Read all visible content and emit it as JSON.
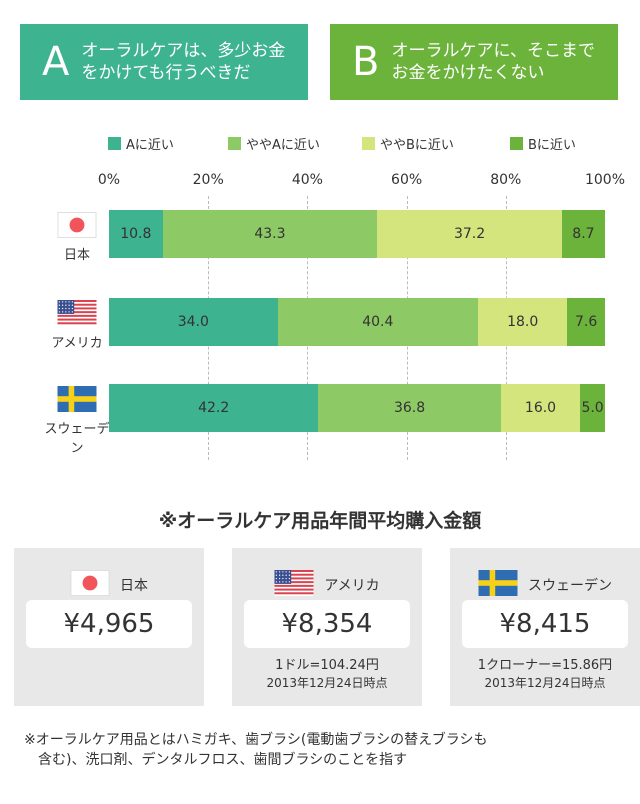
{
  "option_a": {
    "letter": "A",
    "text": "オーラルケアは、多少お金\nをかけても行うべきだ"
  },
  "option_b": {
    "letter": "B",
    "text": "オーラルケアに、そこまで\nお金をかけたくない"
  },
  "colors": {
    "a": "#3eb38f",
    "b": "#6bb33b",
    "seg1": "#3eb38f",
    "seg2": "#8dc965",
    "seg3": "#d5e57e",
    "seg4": "#6bb33b"
  },
  "chart_data": {
    "type": "bar",
    "orientation": "horizontal",
    "stacked": true,
    "categories": [
      "日本",
      "アメリカ",
      "スウェーデン"
    ],
    "series": [
      {
        "name": "Aに近い",
        "values": [
          10.8,
          34.0,
          42.2
        ]
      },
      {
        "name": "ややAに近い",
        "values": [
          43.3,
          40.4,
          36.8
        ]
      },
      {
        "name": "ややBに近い",
        "values": [
          37.2,
          18.0,
          16.0
        ]
      },
      {
        "name": "Bに近い",
        "values": [
          8.7,
          7.6,
          5.0
        ]
      }
    ],
    "x_ticks": [
      "0%",
      "20%",
      "40%",
      "60%",
      "80%",
      "100%"
    ],
    "xlim": [
      0,
      100
    ],
    "grid": true,
    "legend": "top"
  },
  "section_title": "※オーラルケア用品年間平均購入金額",
  "cards": [
    {
      "country": "日本",
      "flag": "japan",
      "amount": "¥4,965",
      "note1": "",
      "note2": ""
    },
    {
      "country": "アメリカ",
      "flag": "usa",
      "amount": "¥8,354",
      "note1": "1ドル=104.24円",
      "note2": "2013年12月24日時点"
    },
    {
      "country": "スウェーデン",
      "flag": "sweden",
      "amount": "¥8,415",
      "note1": "1クローナー=15.86円",
      "note2": "2013年12月24日時点"
    }
  ],
  "footnote": "※オーラルケア用品とはハミガキ、歯ブラシ(電動歯ブラシの替えブラシも\n　含む)、洗口剤、デンタルフロス、歯間ブラシのことを指す"
}
